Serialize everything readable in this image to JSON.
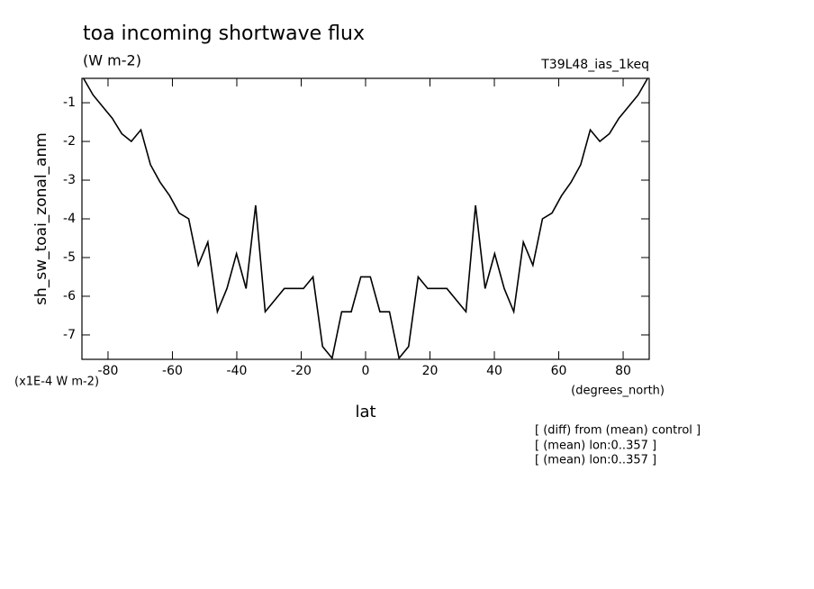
{
  "chart_data": {
    "type": "line",
    "title": "toa incoming shortwave flux",
    "subtitle": "(W m-2)",
    "experiment": "T39L48_ias_1keq",
    "y_label": "sh_sw_toai_zonal_anm",
    "y_units": "(x1E-4 W m-2)",
    "x_units": "(degrees_north)",
    "x_label": "lat",
    "annotations": [
      "[ (diff) from (mean) control ]",
      "[ (mean) lon:0..357 ]",
      "[ (mean) lon:0..357 ]"
    ],
    "x": [
      -87.61,
      -84.64,
      -81.67,
      -78.7,
      -75.73,
      -72.76,
      -69.79,
      -66.82,
      -63.85,
      -60.88,
      -57.91,
      -54.94,
      -51.97,
      -49.0,
      -46.03,
      -43.06,
      -40.09,
      -37.12,
      -34.15,
      -31.18,
      -28.21,
      -25.24,
      -22.27,
      -19.3,
      -16.33,
      -13.36,
      -10.39,
      -7.42,
      -4.45,
      -1.48,
      1.48,
      4.45,
      7.42,
      10.39,
      13.36,
      16.33,
      19.3,
      22.27,
      25.24,
      28.21,
      31.18,
      34.15,
      37.12,
      40.09,
      43.06,
      46.03,
      49.0,
      51.97,
      54.94,
      57.91,
      60.88,
      63.85,
      66.82,
      69.79,
      72.76,
      75.73,
      78.7,
      81.67,
      84.64,
      87.61
    ],
    "series": [
      {
        "color": "#000000",
        "values": [
          -0.37,
          -0.8,
          -1.1,
          -1.4,
          -1.8,
          -2.0,
          -1.7,
          -2.6,
          -3.05,
          -3.4,
          -3.85,
          -4.0,
          -5.2,
          -4.6,
          -6.4,
          -5.8,
          -4.9,
          -5.8,
          -3.65,
          -6.4,
          -6.1,
          -5.8,
          -5.8,
          -5.8,
          -5.5,
          -7.3,
          -7.6,
          -6.4,
          -6.4,
          -5.5,
          -5.5,
          -6.4,
          -6.4,
          -7.6,
          -7.3,
          -5.5,
          -5.8,
          -5.8,
          -5.8,
          -6.1,
          -6.4,
          -3.65,
          -5.8,
          -4.9,
          -5.8,
          -6.4,
          -4.6,
          -5.2,
          -4.0,
          -3.85,
          -3.4,
          -3.05,
          -2.6,
          -1.7,
          -2.0,
          -1.8,
          -1.4,
          -1.1,
          -0.8,
          -0.37
        ]
      }
    ],
    "xlim": [
      -88.1,
      88.1
    ],
    "ylim": [
      -7.63,
      -0.37
    ],
    "xticks": [
      -80,
      -60,
      -40,
      -20,
      0,
      20,
      40,
      60,
      80
    ],
    "yticks": [
      -7,
      -6,
      -5,
      -4,
      -3,
      -2,
      -1
    ],
    "grid": false
  }
}
